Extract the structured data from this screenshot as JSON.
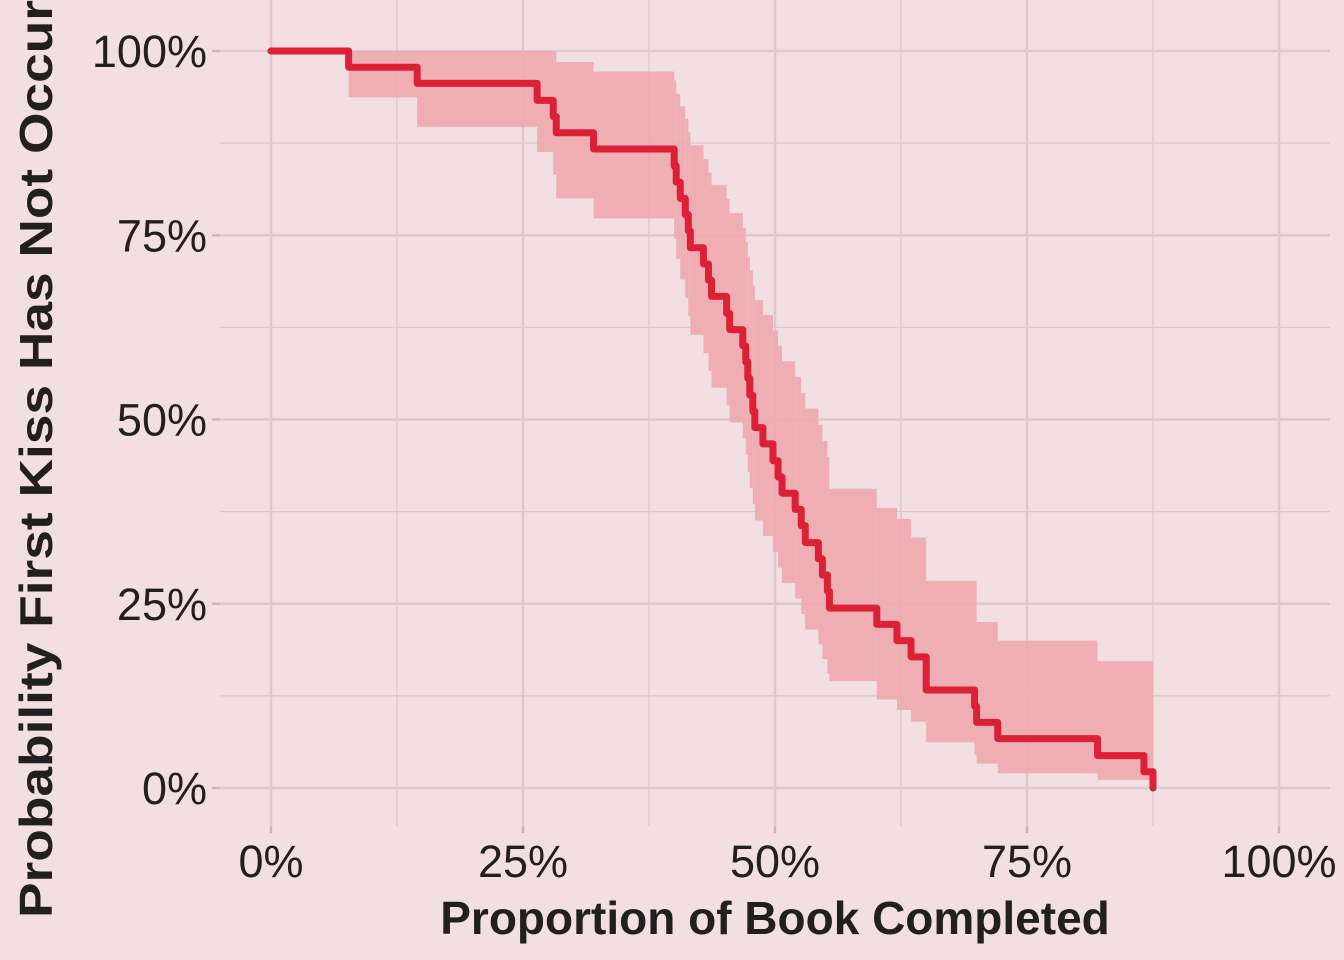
{
  "chart_data": {
    "type": "line",
    "subtype": "kaplan-meier step with confidence band",
    "title": "",
    "xlabel": "Proportion of Book Completed",
    "ylabel": "Probability First Kiss Has Not Occur",
    "xlim": [
      0,
      100
    ],
    "ylim": [
      0,
      100
    ],
    "x_ticks": [
      "0%",
      "25%",
      "50%",
      "75%",
      "100%"
    ],
    "y_ticks": [
      "0%",
      "25%",
      "50%",
      "75%",
      "100%"
    ],
    "x_tick_values": [
      0,
      25,
      50,
      75,
      100
    ],
    "y_tick_values": [
      0,
      25,
      50,
      75,
      100
    ],
    "grid": true,
    "legend": "none",
    "colors": {
      "background": "#F2DFE1",
      "grid": "#DDC9CD",
      "line": "#DC2036",
      "band": "#EDA8AF",
      "text": "#231F20"
    },
    "series": [
      {
        "x": [
          0,
          7.7,
          14.5,
          26.4,
          28.0,
          28.3,
          32.0,
          40.0,
          40.2,
          40.6,
          41.1,
          41.4,
          41.6,
          42.9,
          43.4,
          43.7,
          45.2,
          45.5,
          46.8,
          47.1,
          47.3,
          47.5,
          47.8,
          48.0,
          48.8,
          49.8,
          50.3,
          50.7,
          52.0,
          52.6,
          53.0,
          54.3,
          54.7,
          55.2,
          55.4,
          60.1,
          62.1,
          63.5,
          65.0,
          65.0,
          69.8,
          70.0,
          72.1,
          82.0,
          86.6,
          87.5
        ],
        "survival": [
          100,
          97.8,
          95.6,
          93.3,
          91.1,
          88.9,
          86.7,
          84.4,
          82.2,
          80.0,
          77.8,
          75.6,
          73.3,
          71.1,
          68.9,
          66.7,
          64.4,
          62.2,
          60.0,
          57.8,
          55.6,
          53.3,
          51.1,
          48.9,
          46.7,
          44.4,
          42.2,
          40.0,
          37.8,
          35.6,
          33.3,
          31.1,
          28.9,
          26.7,
          24.4,
          22.2,
          20.0,
          17.8,
          15.6,
          13.3,
          11.1,
          8.9,
          6.7,
          4.4,
          2.2,
          0
        ],
        "lower": [
          100,
          93.7,
          89.7,
          86.3,
          83.2,
          80.0,
          77.3,
          74.5,
          71.8,
          69.0,
          66.5,
          64.0,
          61.5,
          59.0,
          56.6,
          54.3,
          52.0,
          49.6,
          47.4,
          45.2,
          42.9,
          40.7,
          38.5,
          36.3,
          34.2,
          32.0,
          29.9,
          27.8,
          25.7,
          23.6,
          21.5,
          19.5,
          17.5,
          15.5,
          14.5,
          12.0,
          10.6,
          9.0,
          7.5,
          6.2,
          4.5,
          3.3,
          2.0,
          1.1,
          1.1,
          0
        ],
        "upper": [
          100,
          100,
          100,
          100,
          100,
          98.5,
          97.2,
          96.0,
          94.2,
          92.5,
          90.8,
          89.0,
          87.2,
          85.3,
          83.5,
          81.8,
          79.9,
          78.0,
          76.0,
          74.1,
          72.1,
          70.2,
          68.2,
          66.2,
          64.2,
          62.1,
          60.0,
          57.9,
          55.8,
          53.6,
          51.5,
          49.3,
          47.1,
          44.9,
          40.6,
          38.0,
          36.5,
          34.0,
          31.5,
          28.1,
          28.1,
          22.5,
          20.0,
          17.2,
          17.2,
          0
        ]
      }
    ]
  }
}
